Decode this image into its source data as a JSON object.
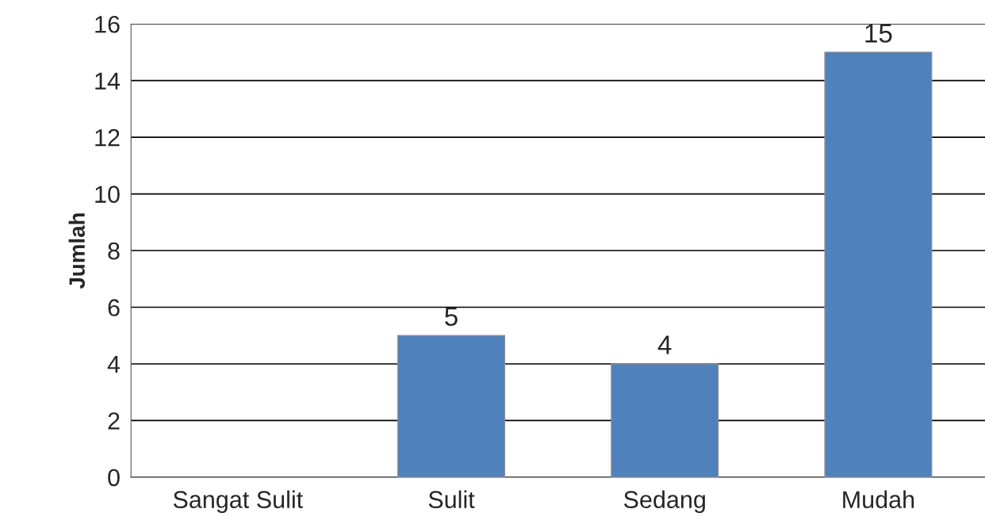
{
  "chart_data": {
    "type": "bar",
    "ylabel": "Jumlah",
    "categories": [
      "Sangat Sulit",
      "Sulit",
      "Sedang",
      "Mudah"
    ],
    "values": [
      0,
      5,
      4,
      15
    ],
    "color": "#4f81bd",
    "value_labels": [
      null,
      "5",
      "4",
      "15"
    ],
    "ylim": [
      0,
      16
    ],
    "yticks": [
      0,
      2,
      4,
      6,
      8,
      10,
      12,
      14,
      16
    ],
    "grid": "y",
    "legend": false
  }
}
